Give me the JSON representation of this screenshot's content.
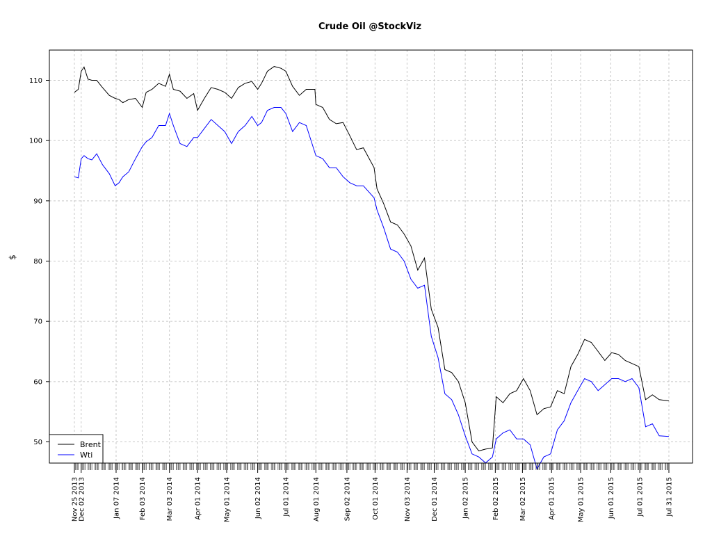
{
  "chart_data": {
    "type": "line",
    "title": "Crude Oil @StockViz",
    "xlabel": "",
    "ylabel": "$",
    "ylim": [
      46,
      114
    ],
    "y_ticks": [
      50,
      60,
      70,
      80,
      90,
      100,
      110
    ],
    "grid": true,
    "legend_position": "bottom-left",
    "x_ticks": [
      {
        "date": "2013-11-25",
        "label": "Nov 25 2013"
      },
      {
        "date": "2013-12-02",
        "label": "Dec 02 2013"
      },
      {
        "date": "2014-01-07",
        "label": "Jan 07 2014"
      },
      {
        "date": "2014-02-03",
        "label": "Feb 03 2014"
      },
      {
        "date": "2014-03-03",
        "label": "Mar 03 2014"
      },
      {
        "date": "2014-04-01",
        "label": "Apr 01 2014"
      },
      {
        "date": "2014-05-01",
        "label": "May 01 2014"
      },
      {
        "date": "2014-06-02",
        "label": "Jun 02 2014"
      },
      {
        "date": "2014-07-01",
        "label": "Jul 01 2014"
      },
      {
        "date": "2014-08-01",
        "label": "Aug 01 2014"
      },
      {
        "date": "2014-09-02",
        "label": "Sep 02 2014"
      },
      {
        "date": "2014-10-01",
        "label": "Oct 01 2014"
      },
      {
        "date": "2014-11-03",
        "label": "Nov 03 2014"
      },
      {
        "date": "2014-12-01",
        "label": "Dec 01 2014"
      },
      {
        "date": "2015-01-02",
        "label": "Jan 02 2015"
      },
      {
        "date": "2015-02-02",
        "label": "Feb 02 2015"
      },
      {
        "date": "2015-03-02",
        "label": "Mar 02 2015"
      },
      {
        "date": "2015-04-01",
        "label": "Apr 01 2015"
      },
      {
        "date": "2015-05-01",
        "label": "May 01 2015"
      },
      {
        "date": "2015-06-01",
        "label": "Jun 01 2015"
      },
      {
        "date": "2015-07-01",
        "label": "Jul 01 2015"
      },
      {
        "date": "2015-07-31",
        "label": "Jul 31 2015"
      }
    ],
    "series": [
      {
        "name": "Brent",
        "color": "#000000",
        "points": [
          [
            "2013-11-25",
            108.0
          ],
          [
            "2013-11-29",
            108.5
          ],
          [
            "2013-12-02",
            111.5
          ],
          [
            "2013-12-05",
            112.2
          ],
          [
            "2013-12-09",
            110.2
          ],
          [
            "2013-12-13",
            110.0
          ],
          [
            "2013-12-18",
            110.0
          ],
          [
            "2013-12-24",
            108.8
          ],
          [
            "2013-12-31",
            107.5
          ],
          [
            "2014-01-06",
            107.0
          ],
          [
            "2014-01-10",
            106.8
          ],
          [
            "2014-01-14",
            106.3
          ],
          [
            "2014-01-20",
            106.8
          ],
          [
            "2014-01-27",
            107.0
          ],
          [
            "2014-02-03",
            105.5
          ],
          [
            "2014-02-07",
            108.0
          ],
          [
            "2014-02-13",
            108.5
          ],
          [
            "2014-02-20",
            109.5
          ],
          [
            "2014-02-27",
            109.0
          ],
          [
            "2014-03-03",
            111.0
          ],
          [
            "2014-03-07",
            108.5
          ],
          [
            "2014-03-14",
            108.2
          ],
          [
            "2014-03-21",
            107.0
          ],
          [
            "2014-03-28",
            107.8
          ],
          [
            "2014-04-01",
            105.0
          ],
          [
            "2014-04-08",
            107.0
          ],
          [
            "2014-04-15",
            108.8
          ],
          [
            "2014-04-22",
            108.5
          ],
          [
            "2014-04-29",
            108.0
          ],
          [
            "2014-05-06",
            107.0
          ],
          [
            "2014-05-13",
            108.8
          ],
          [
            "2014-05-20",
            109.5
          ],
          [
            "2014-05-27",
            109.8
          ],
          [
            "2014-06-02",
            108.5
          ],
          [
            "2014-06-06",
            109.5
          ],
          [
            "2014-06-12",
            111.5
          ],
          [
            "2014-06-19",
            112.3
          ],
          [
            "2014-06-26",
            112.0
          ],
          [
            "2014-07-01",
            111.5
          ],
          [
            "2014-07-08",
            109.0
          ],
          [
            "2014-07-15",
            107.5
          ],
          [
            "2014-07-22",
            108.5
          ],
          [
            "2014-07-31",
            108.5
          ],
          [
            "2014-08-01",
            106.0
          ],
          [
            "2014-08-08",
            105.5
          ],
          [
            "2014-08-15",
            103.5
          ],
          [
            "2014-08-22",
            102.8
          ],
          [
            "2014-08-29",
            103.0
          ],
          [
            "2014-09-05",
            100.8
          ],
          [
            "2014-09-12",
            98.5
          ],
          [
            "2014-09-19",
            98.8
          ],
          [
            "2014-09-30",
            95.5
          ],
          [
            "2014-10-03",
            92.0
          ],
          [
            "2014-10-10",
            89.5
          ],
          [
            "2014-10-17",
            86.5
          ],
          [
            "2014-10-24",
            86.0
          ],
          [
            "2014-10-31",
            84.5
          ],
          [
            "2014-11-07",
            82.5
          ],
          [
            "2014-11-14",
            78.5
          ],
          [
            "2014-11-21",
            80.5
          ],
          [
            "2014-11-28",
            72.0
          ],
          [
            "2014-12-05",
            69.0
          ],
          [
            "2014-12-12",
            62.0
          ],
          [
            "2014-12-19",
            61.5
          ],
          [
            "2014-12-26",
            60.0
          ],
          [
            "2015-01-02",
            56.5
          ],
          [
            "2015-01-09",
            50.0
          ],
          [
            "2015-01-16",
            48.5
          ],
          [
            "2015-01-23",
            48.8
          ],
          [
            "2015-01-30",
            49.0
          ],
          [
            "2015-02-03",
            57.5
          ],
          [
            "2015-02-10",
            56.5
          ],
          [
            "2015-02-17",
            58.0
          ],
          [
            "2015-02-24",
            58.5
          ],
          [
            "2015-03-03",
            60.5
          ],
          [
            "2015-03-10",
            58.5
          ],
          [
            "2015-03-17",
            54.5
          ],
          [
            "2015-03-24",
            55.5
          ],
          [
            "2015-03-31",
            55.8
          ],
          [
            "2015-04-07",
            58.5
          ],
          [
            "2015-04-14",
            58.0
          ],
          [
            "2015-04-21",
            62.5
          ],
          [
            "2015-04-28",
            64.5
          ],
          [
            "2015-05-05",
            67.0
          ],
          [
            "2015-05-12",
            66.5
          ],
          [
            "2015-05-19",
            65.0
          ],
          [
            "2015-05-26",
            63.5
          ],
          [
            "2015-06-02",
            64.8
          ],
          [
            "2015-06-09",
            64.5
          ],
          [
            "2015-06-16",
            63.5
          ],
          [
            "2015-06-23",
            63.0
          ],
          [
            "2015-06-30",
            62.5
          ],
          [
            "2015-07-07",
            57.0
          ],
          [
            "2015-07-14",
            57.8
          ],
          [
            "2015-07-21",
            57.0
          ],
          [
            "2015-07-31",
            56.8
          ]
        ]
      },
      {
        "name": "Wti",
        "color": "#0000ff",
        "points": [
          [
            "2013-11-25",
            94.0
          ],
          [
            "2013-11-29",
            93.8
          ],
          [
            "2013-12-02",
            97.0
          ],
          [
            "2013-12-05",
            97.5
          ],
          [
            "2013-12-09",
            97.0
          ],
          [
            "2013-12-13",
            96.8
          ],
          [
            "2013-12-18",
            97.8
          ],
          [
            "2013-12-24",
            96.0
          ],
          [
            "2013-12-31",
            94.5
          ],
          [
            "2014-01-06",
            92.5
          ],
          [
            "2014-01-10",
            93.0
          ],
          [
            "2014-01-14",
            94.0
          ],
          [
            "2014-01-20",
            94.8
          ],
          [
            "2014-01-27",
            97.0
          ],
          [
            "2014-02-03",
            99.0
          ],
          [
            "2014-02-07",
            99.8
          ],
          [
            "2014-02-13",
            100.5
          ],
          [
            "2014-02-20",
            102.5
          ],
          [
            "2014-02-27",
            102.5
          ],
          [
            "2014-03-03",
            104.5
          ],
          [
            "2014-03-07",
            102.5
          ],
          [
            "2014-03-14",
            99.5
          ],
          [
            "2014-03-21",
            99.0
          ],
          [
            "2014-03-28",
            100.5
          ],
          [
            "2014-04-01",
            100.5
          ],
          [
            "2014-04-08",
            102.0
          ],
          [
            "2014-04-15",
            103.5
          ],
          [
            "2014-04-22",
            102.5
          ],
          [
            "2014-04-29",
            101.5
          ],
          [
            "2014-05-06",
            99.5
          ],
          [
            "2014-05-13",
            101.5
          ],
          [
            "2014-05-20",
            102.5
          ],
          [
            "2014-05-27",
            104.0
          ],
          [
            "2014-06-02",
            102.5
          ],
          [
            "2014-06-06",
            103.0
          ],
          [
            "2014-06-12",
            105.0
          ],
          [
            "2014-06-19",
            105.5
          ],
          [
            "2014-06-26",
            105.5
          ],
          [
            "2014-07-01",
            104.5
          ],
          [
            "2014-07-08",
            101.5
          ],
          [
            "2014-07-15",
            103.0
          ],
          [
            "2014-07-22",
            102.5
          ],
          [
            "2014-07-31",
            98.0
          ],
          [
            "2014-08-01",
            97.5
          ],
          [
            "2014-08-08",
            97.0
          ],
          [
            "2014-08-15",
            95.5
          ],
          [
            "2014-08-22",
            95.5
          ],
          [
            "2014-08-29",
            94.0
          ],
          [
            "2014-09-05",
            93.0
          ],
          [
            "2014-09-12",
            92.5
          ],
          [
            "2014-09-19",
            92.5
          ],
          [
            "2014-09-30",
            90.5
          ],
          [
            "2014-10-03",
            88.5
          ],
          [
            "2014-10-10",
            85.5
          ],
          [
            "2014-10-17",
            82.0
          ],
          [
            "2014-10-24",
            81.5
          ],
          [
            "2014-10-31",
            80.0
          ],
          [
            "2014-11-07",
            77.0
          ],
          [
            "2014-11-14",
            75.5
          ],
          [
            "2014-11-21",
            76.0
          ],
          [
            "2014-11-28",
            67.5
          ],
          [
            "2014-12-05",
            64.0
          ],
          [
            "2014-12-12",
            58.0
          ],
          [
            "2014-12-19",
            57.0
          ],
          [
            "2014-12-26",
            54.5
          ],
          [
            "2015-01-02",
            51.0
          ],
          [
            "2015-01-09",
            48.0
          ],
          [
            "2015-01-16",
            47.5
          ],
          [
            "2015-01-23",
            46.5
          ],
          [
            "2015-01-30",
            47.5
          ],
          [
            "2015-02-03",
            50.5
          ],
          [
            "2015-02-10",
            51.5
          ],
          [
            "2015-02-17",
            52.0
          ],
          [
            "2015-02-24",
            50.5
          ],
          [
            "2015-03-03",
            50.5
          ],
          [
            "2015-03-10",
            49.5
          ],
          [
            "2015-03-17",
            45.5
          ],
          [
            "2015-03-24",
            47.5
          ],
          [
            "2015-03-31",
            48.0
          ],
          [
            "2015-04-07",
            52.0
          ],
          [
            "2015-04-14",
            53.5
          ],
          [
            "2015-04-21",
            56.5
          ],
          [
            "2015-04-28",
            58.5
          ],
          [
            "2015-05-05",
            60.5
          ],
          [
            "2015-05-12",
            60.0
          ],
          [
            "2015-05-19",
            58.5
          ],
          [
            "2015-05-26",
            59.5
          ],
          [
            "2015-06-02",
            60.5
          ],
          [
            "2015-06-09",
            60.5
          ],
          [
            "2015-06-16",
            60.0
          ],
          [
            "2015-06-23",
            60.5
          ],
          [
            "2015-06-30",
            59.0
          ],
          [
            "2015-07-07",
            52.5
          ],
          [
            "2015-07-14",
            53.0
          ],
          [
            "2015-07-21",
            51.0
          ],
          [
            "2015-07-31",
            50.9
          ]
        ]
      }
    ]
  }
}
